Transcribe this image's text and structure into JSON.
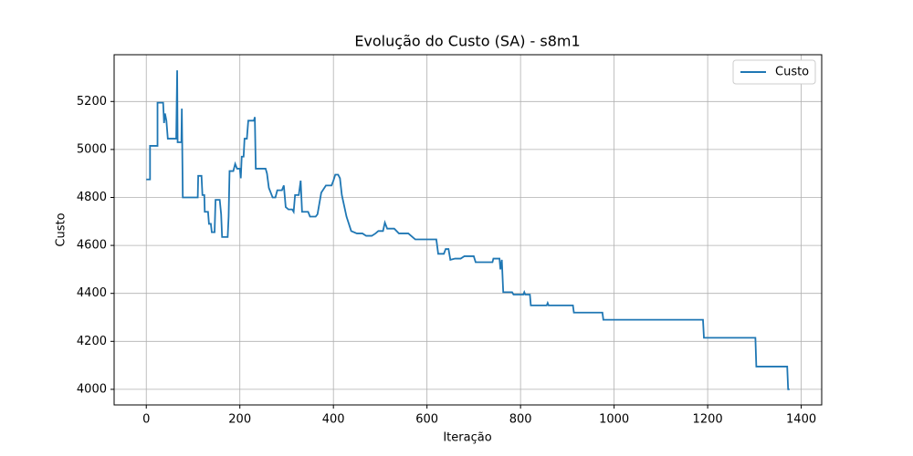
{
  "chart_data": {
    "type": "line",
    "title": "Evolução do Custo (SA) - s8m1",
    "x_label": "Iteração",
    "y_label": "Custo",
    "x": [
      0,
      8,
      8,
      24,
      24,
      36,
      38,
      40,
      43,
      46,
      64,
      66,
      67,
      75,
      76,
      78,
      110,
      111,
      118,
      120,
      124,
      125,
      132,
      134,
      138,
      140,
      146,
      148,
      157,
      160,
      162,
      174,
      176,
      178,
      186,
      190,
      194,
      200,
      202,
      204,
      208,
      210,
      215,
      218,
      230,
      232,
      234,
      255,
      258,
      262,
      266,
      270,
      276,
      280,
      290,
      294,
      298,
      304,
      312,
      315,
      318,
      326,
      330,
      333,
      346,
      350,
      362,
      366,
      374,
      384,
      396,
      400,
      404,
      410,
      414,
      418,
      428,
      438,
      450,
      462,
      470,
      482,
      490,
      496,
      506,
      510,
      515,
      530,
      540,
      560,
      566,
      575,
      620,
      624,
      636,
      640,
      646,
      650,
      660,
      672,
      680,
      700,
      704,
      740,
      742,
      755,
      757,
      760,
      763,
      782,
      785,
      806,
      808,
      810,
      820,
      822,
      856,
      858,
      860,
      912,
      914,
      975,
      977,
      1190,
      1192,
      1302,
      1304,
      1370,
      1372,
      1375
    ],
    "series": [
      {
        "name": "Custo",
        "color": "#1f77b4",
        "values": [
          4875,
          4875,
          5015,
          5015,
          5195,
          5195,
          5110,
          5150,
          5120,
          5045,
          5045,
          5330,
          5030,
          5030,
          5170,
          4800,
          4800,
          4890,
          4890,
          4810,
          4810,
          4740,
          4740,
          4690,
          4690,
          4655,
          4655,
          4790,
          4790,
          4730,
          4635,
          4635,
          4720,
          4910,
          4910,
          4940,
          4920,
          4920,
          4880,
          4970,
          4970,
          5045,
          5045,
          5120,
          5120,
          5135,
          4920,
          4920,
          4900,
          4840,
          4820,
          4800,
          4800,
          4830,
          4830,
          4850,
          4760,
          4750,
          4750,
          4740,
          4810,
          4810,
          4870,
          4740,
          4740,
          4720,
          4720,
          4730,
          4820,
          4850,
          4850,
          4870,
          4895,
          4895,
          4880,
          4810,
          4720,
          4660,
          4650,
          4650,
          4640,
          4640,
          4650,
          4660,
          4660,
          4695,
          4670,
          4670,
          4650,
          4650,
          4640,
          4625,
          4625,
          4565,
          4565,
          4585,
          4585,
          4540,
          4545,
          4545,
          4555,
          4555,
          4530,
          4530,
          4545,
          4545,
          4500,
          4540,
          4405,
          4405,
          4395,
          4395,
          4405,
          4395,
          4395,
          4350,
          4350,
          4360,
          4350,
          4350,
          4320,
          4320,
          4290,
          4290,
          4215,
          4215,
          4095,
          4095,
          4000,
          4000
        ]
      }
    ],
    "xlim": [
      -68.75,
      1443.75
    ],
    "ylim": [
      3935,
      5395
    ],
    "xticks": [
      0,
      200,
      400,
      600,
      800,
      1000,
      1200,
      1400
    ],
    "yticks": [
      4000,
      4200,
      4400,
      4600,
      4800,
      5000,
      5200
    ],
    "grid": true,
    "legend": "upper right"
  }
}
